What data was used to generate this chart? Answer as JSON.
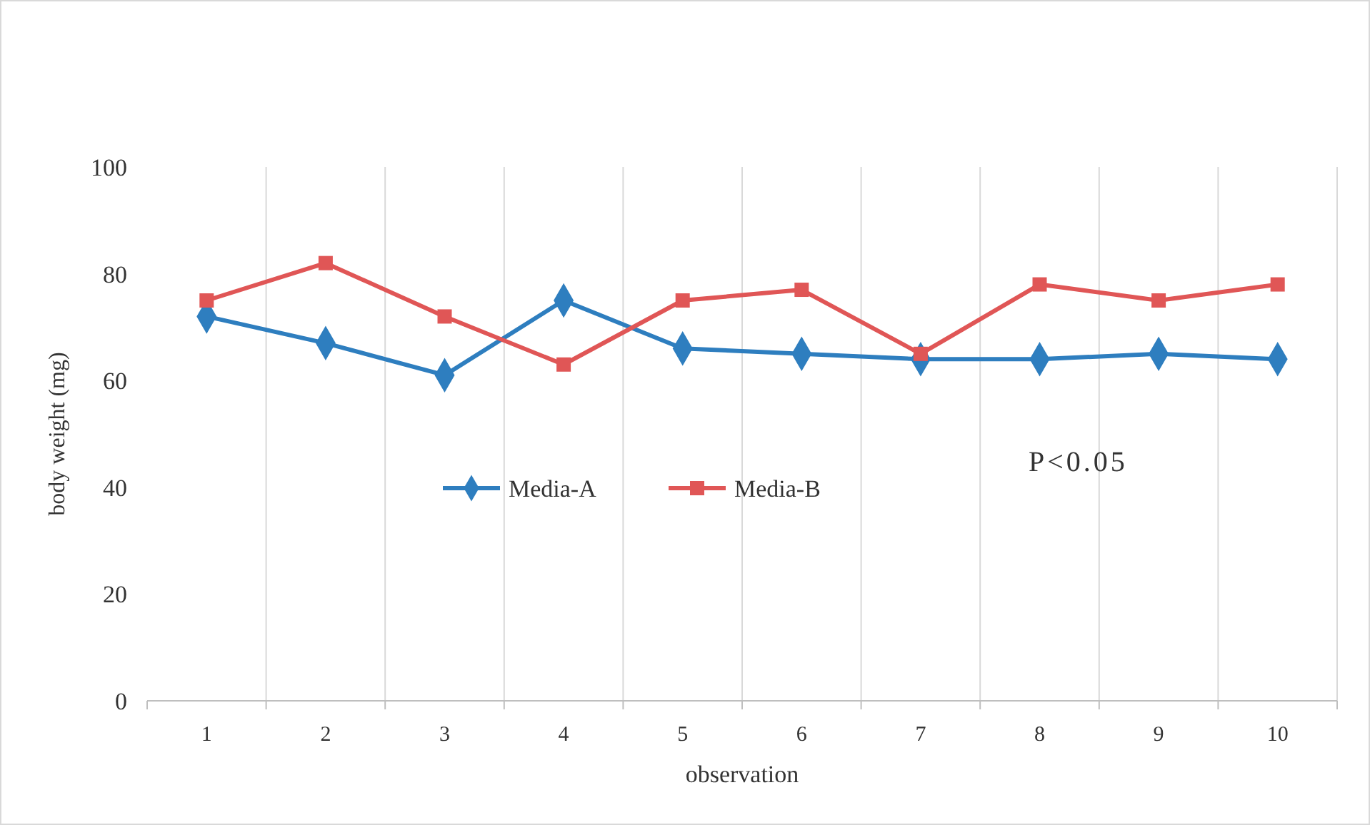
{
  "chart_data": {
    "type": "line",
    "xlabel": "observation",
    "ylabel": "body weight (mg)",
    "categories": [
      "1",
      "2",
      "3",
      "4",
      "5",
      "6",
      "7",
      "8",
      "9",
      "10"
    ],
    "series": [
      {
        "name": "Media-A",
        "color": "#2e7ebf",
        "marker": "diamond",
        "values": [
          72,
          67,
          61,
          75,
          66,
          65,
          64,
          64,
          65,
          64
        ]
      },
      {
        "name": "Media-B",
        "color": "#e05656",
        "marker": "square",
        "values": [
          75,
          82,
          72,
          63,
          75,
          77,
          65,
          78,
          75,
          78
        ]
      }
    ],
    "ylim": [
      0,
      100
    ],
    "yticks": [
      0,
      20,
      40,
      60,
      80,
      100
    ],
    "grid": "x",
    "legend": "center",
    "annotations": [
      "P<0.05"
    ]
  }
}
